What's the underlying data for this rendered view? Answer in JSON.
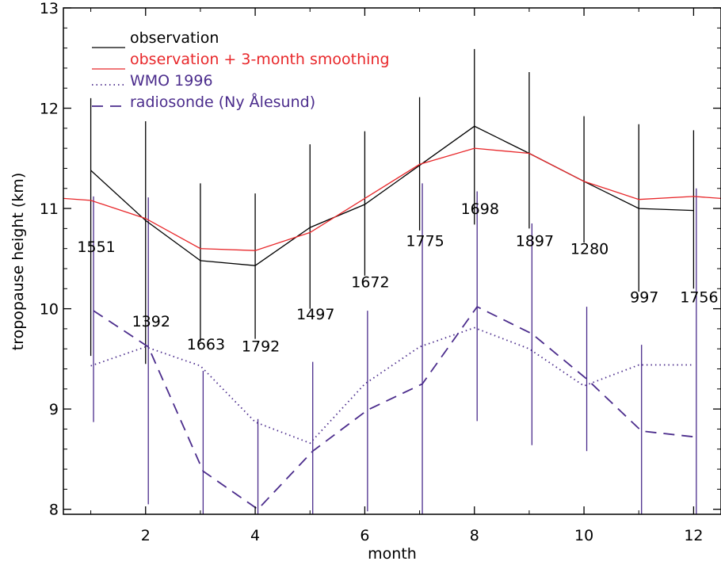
{
  "chart_data": {
    "type": "line",
    "xlabel": "month",
    "ylabel": "tropopause height (km)",
    "xlim": [
      0.5,
      12.5
    ],
    "ylim": [
      7.95,
      13
    ],
    "x_ticks": [
      2,
      4,
      6,
      8,
      10,
      12
    ],
    "y_ticks": [
      8,
      9,
      10,
      11,
      12,
      13
    ],
    "grid": false,
    "legend_position": "top-left",
    "x": [
      1,
      2,
      3,
      4,
      5,
      6,
      7,
      8,
      9,
      10,
      11,
      12
    ],
    "series": [
      {
        "name": "observation",
        "color": "#000000",
        "style": "solid",
        "values": [
          11.38,
          10.88,
          10.48,
          10.43,
          10.81,
          11.04,
          11.43,
          11.82,
          11.55,
          11.27,
          11.0,
          10.98
        ],
        "error_low": [
          9.53,
          9.45,
          9.67,
          9.7,
          10.0,
          10.33,
          10.78,
          10.84,
          10.8,
          10.66,
          10.17,
          10.2
        ],
        "error_high": [
          12.1,
          11.87,
          11.25,
          11.15,
          11.64,
          11.77,
          12.11,
          12.59,
          12.36,
          11.92,
          11.84,
          11.78
        ]
      },
      {
        "name": "observation + 3-month smoothing",
        "color": "#e8272a",
        "style": "solid",
        "x": [
          0.5,
          1,
          2,
          3,
          4,
          5,
          6,
          7,
          8,
          9,
          10,
          11,
          12,
          12.5
        ],
        "values": [
          11.1,
          11.08,
          10.9,
          10.6,
          10.58,
          10.76,
          11.1,
          11.44,
          11.6,
          11.55,
          11.27,
          11.09,
          11.12,
          11.1
        ]
      },
      {
        "name": "WMO 1996",
        "color": "#4b2c8c",
        "style": "dotted",
        "values": [
          9.43,
          9.62,
          9.43,
          8.87,
          8.66,
          9.25,
          9.62,
          9.81,
          9.6,
          9.23,
          9.44,
          9.44
        ]
      },
      {
        "name": "radiosonde (Ny Ålesund)",
        "color": "#4b2c8c",
        "style": "dashed",
        "x_offset": 0.05,
        "values": [
          9.98,
          9.62,
          8.38,
          8.0,
          8.58,
          8.99,
          9.25,
          10.02,
          9.75,
          9.3,
          8.78,
          8.72
        ],
        "error_low": [
          8.87,
          8.05,
          7.95,
          7.95,
          7.95,
          7.98,
          7.95,
          8.88,
          8.64,
          8.58,
          7.95,
          7.95
        ],
        "error_high": [
          11.12,
          11.11,
          9.38,
          8.9,
          9.47,
          9.98,
          11.25,
          11.17,
          10.85,
          10.02,
          9.64,
          11.2
        ]
      }
    ],
    "annotations": [
      {
        "text": "1551",
        "x": 1,
        "y": 10.62
      },
      {
        "text": "1392",
        "x": 2,
        "y": 9.88
      },
      {
        "text": "1663",
        "x": 3,
        "y": 9.65
      },
      {
        "text": "1792",
        "x": 4,
        "y": 9.63
      },
      {
        "text": "1497",
        "x": 5,
        "y": 9.95
      },
      {
        "text": "1672",
        "x": 6,
        "y": 10.27
      },
      {
        "text": "1775",
        "x": 7,
        "y": 10.68
      },
      {
        "text": "1698",
        "x": 8,
        "y": 11.0
      },
      {
        "text": "1897",
        "x": 9,
        "y": 10.68
      },
      {
        "text": "1280",
        "x": 10,
        "y": 10.6
      },
      {
        "text": "997",
        "x": 11,
        "y": 10.12
      },
      {
        "text": "1756",
        "x": 12,
        "y": 10.12
      }
    ]
  }
}
